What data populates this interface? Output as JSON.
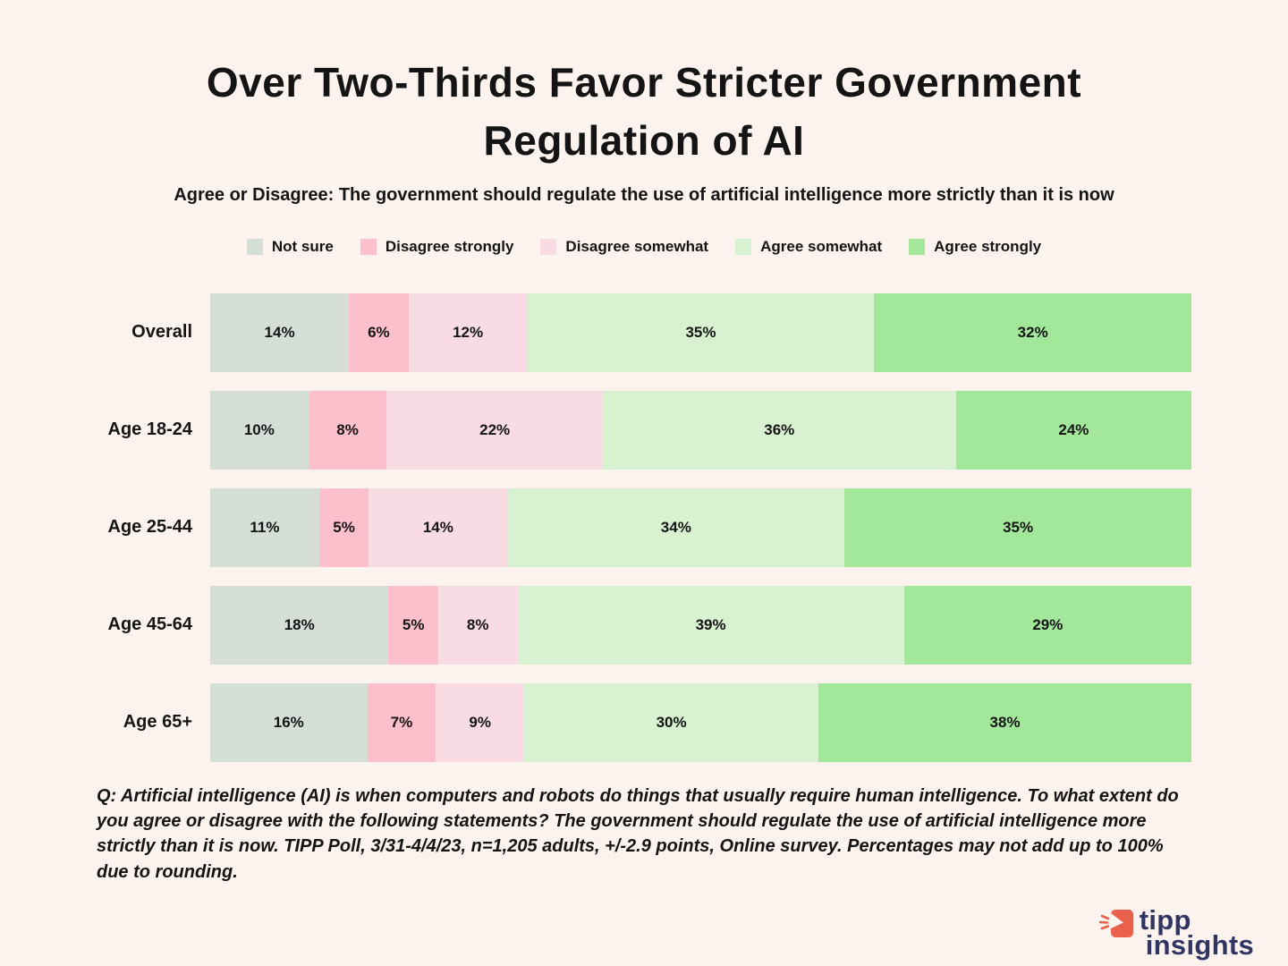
{
  "colors": {
    "background": "#fdf3ee",
    "text": "#141414",
    "logo_navy": "#303561",
    "logo_red": "#e9604c"
  },
  "header": {
    "title_line1": "Over Two-Thirds Favor Stricter Government",
    "title_line2": "Regulation of AI",
    "subtitle": "Agree or Disagree: The government should regulate the use of artificial intelligence more strictly than it is now"
  },
  "chart_data": {
    "type": "bar",
    "orientation": "horizontal-stacked",
    "title": "Over Two-Thirds Favor Stricter Government Regulation of AI",
    "xlabel": "",
    "ylabel": "",
    "xlim": [
      0,
      100
    ],
    "grid": false,
    "legend_position": "top",
    "value_suffix": "%",
    "categories": [
      "Overall",
      "Age 18-24",
      "Age 25-44",
      "Age 45-64",
      "Age 65+"
    ],
    "series": [
      {
        "name": "Not sure",
        "color": "#d6dfd7",
        "values": [
          14,
          10,
          11,
          18,
          16
        ]
      },
      {
        "name": "Disagree strongly",
        "color": "#fcc0cd",
        "values": [
          6,
          8,
          5,
          5,
          7
        ]
      },
      {
        "name": "Disagree somewhat",
        "color": "#f8dbe3",
        "values": [
          12,
          22,
          14,
          8,
          9
        ]
      },
      {
        "name": "Agree somewhat",
        "color": "#d7f1d1",
        "values": [
          35,
          36,
          34,
          39,
          30
        ]
      },
      {
        "name": "Agree strongly",
        "color": "#a3e79b",
        "values": [
          32,
          24,
          35,
          29,
          38
        ]
      }
    ]
  },
  "footer": {
    "note": "Q: Artificial intelligence (AI) is when computers and robots do things that usually require human intelligence. To what extent do you agree or disagree with the following statements? The government should regulate the use of artificial intelligence more strictly than it is now. TIPP Poll, 3/31-4/4/23, n=1,205 adults, +/-2.9 points, Online survey. Percentages may not add up to 100% due to rounding.",
    "brand_line1": "tipp",
    "brand_line2": "insights"
  }
}
